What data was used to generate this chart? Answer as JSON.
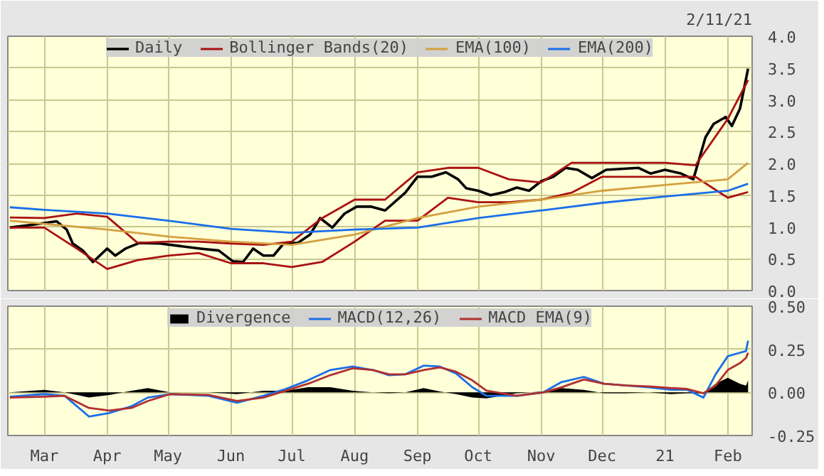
{
  "chart_data": [
    {
      "type": "line",
      "annotations": [
        "2/11/21"
      ],
      "xlim": [
        "2020-02-12",
        "2021-02-13"
      ],
      "ylim": [
        0,
        4
      ],
      "yticks": [
        {
          "value": 0,
          "label": "0.0"
        },
        {
          "value": 0.5,
          "label": "0.5"
        },
        {
          "value": 1,
          "label": "1.0"
        },
        {
          "value": 1.5,
          "label": "1.5"
        },
        {
          "value": 2,
          "label": "2.0"
        },
        {
          "value": 2.5,
          "label": "2.5"
        },
        {
          "value": 3,
          "label": "3.0"
        },
        {
          "value": 3.5,
          "label": "3.5"
        },
        {
          "value": 4,
          "label": "4.0"
        }
      ],
      "xticks": [
        {
          "value": "2020-03-01",
          "label": null
        },
        {
          "value": "2020-04-01",
          "label": null
        },
        {
          "value": "2020-05-01",
          "label": null
        },
        {
          "value": "2020-06-01",
          "label": null
        },
        {
          "value": "2020-07-01",
          "label": null
        },
        {
          "value": "2020-08-01",
          "label": null
        },
        {
          "value": "2020-09-01",
          "label": null
        },
        {
          "value": "2020-10-01",
          "label": null
        },
        {
          "value": "2020-11-01",
          "label": null
        },
        {
          "value": "2020-12-01",
          "label": null
        },
        {
          "value": "2021-01-01",
          "label": null
        },
        {
          "value": "2021-02-01",
          "label": null
        }
      ],
      "tick_labels": "y",
      "grid": true,
      "legend": "top",
      "series": [
        {
          "name": "Daily",
          "color": "#000000",
          "x": [
            "2020-02-13",
            "2020-02-25",
            "2020-03-07",
            "2020-03-12",
            "2020-03-15",
            "2020-03-20",
            "2020-03-25",
            "2020-04-01",
            "2020-04-05",
            "2020-04-10",
            "2020-04-17",
            "2020-04-27",
            "2020-05-07",
            "2020-05-17",
            "2020-05-26",
            "2020-06-02",
            "2020-06-07",
            "2020-06-12",
            "2020-06-17",
            "2020-06-22",
            "2020-06-27",
            "2020-07-04",
            "2020-07-10",
            "2020-07-15",
            "2020-07-21",
            "2020-07-27",
            "2020-08-02",
            "2020-08-09",
            "2020-08-16",
            "2020-08-26",
            "2020-09-01",
            "2020-09-08",
            "2020-09-15",
            "2020-09-21",
            "2020-09-25",
            "2020-10-01",
            "2020-10-07",
            "2020-10-14",
            "2020-10-20",
            "2020-10-26",
            "2020-11-01",
            "2020-11-07",
            "2020-11-13",
            "2020-11-19",
            "2020-11-26",
            "2020-12-03",
            "2020-12-09",
            "2020-12-19",
            "2020-12-25",
            "2021-01-01",
            "2021-01-09",
            "2021-01-15",
            "2021-01-17",
            "2021-01-21",
            "2021-01-25",
            "2021-01-31",
            "2021-02-03",
            "2021-02-07",
            "2021-02-11"
          ],
          "values": [
            0.99,
            1.04,
            1.09,
            0.96,
            0.74,
            0.63,
            0.45,
            0.66,
            0.55,
            0.66,
            0.75,
            0.74,
            0.7,
            0.66,
            0.63,
            0.46,
            0.45,
            0.66,
            0.55,
            0.55,
            0.74,
            0.75,
            0.88,
            1.14,
            0.99,
            1.21,
            1.32,
            1.32,
            1.26,
            1.54,
            1.79,
            1.79,
            1.86,
            1.75,
            1.61,
            1.57,
            1.5,
            1.55,
            1.62,
            1.57,
            1.72,
            1.79,
            1.93,
            1.9,
            1.77,
            1.9,
            1.91,
            1.93,
            1.84,
            1.9,
            1.84,
            1.75,
            1.97,
            2.41,
            2.62,
            2.73,
            2.59,
            2.86,
            3.49
          ]
        },
        {
          "name": "Bollinger Bands(20)",
          "color": "#aa1111",
          "x": [
            "2020-02-13",
            "2020-03-01",
            "2020-03-17",
            "2020-04-01",
            "2020-04-16",
            "2020-05-01",
            "2020-05-16",
            "2020-06-01",
            "2020-06-17",
            "2020-07-01",
            "2020-07-16",
            "2020-08-01",
            "2020-08-16",
            "2020-09-01",
            "2020-09-16",
            "2020-10-01",
            "2020-10-16",
            "2020-11-01",
            "2020-11-16",
            "2020-12-01",
            "2020-12-16",
            "2021-01-01",
            "2021-01-16",
            "2021-02-01",
            "2021-02-11"
          ],
          "values": [
            1.15,
            1.14,
            1.21,
            1.16,
            0.75,
            0.77,
            0.77,
            0.74,
            0.72,
            0.77,
            1.14,
            1.43,
            1.43,
            1.86,
            1.93,
            1.93,
            1.75,
            1.7,
            2.01,
            2.01,
            2.01,
            2.01,
            1.97,
            2.7,
            3.31
          ]
        },
        {
          "color": "#aa1111",
          "x": [
            "2020-02-13",
            "2020-03-01",
            "2020-03-17",
            "2020-04-01",
            "2020-04-16",
            "2020-05-01",
            "2020-05-16",
            "2020-06-01",
            "2020-06-17",
            "2020-07-01",
            "2020-07-16",
            "2020-08-01",
            "2020-08-16",
            "2020-09-01",
            "2020-09-16",
            "2020-10-01",
            "2020-10-16",
            "2020-11-01",
            "2020-11-16",
            "2020-12-01",
            "2020-12-16",
            "2021-01-01",
            "2021-01-16",
            "2021-02-01",
            "2021-02-11"
          ],
          "values": [
            0.99,
            0.99,
            0.66,
            0.34,
            0.48,
            0.55,
            0.59,
            0.43,
            0.43,
            0.37,
            0.45,
            0.77,
            1.1,
            1.1,
            1.46,
            1.39,
            1.39,
            1.43,
            1.54,
            1.79,
            1.79,
            1.79,
            1.79,
            1.46,
            1.55
          ]
        },
        {
          "name": "EMA(100)",
          "color": "#d4a040",
          "x": [
            "2020-02-13",
            "2020-03-01",
            "2020-04-01",
            "2020-05-01",
            "2020-06-01",
            "2020-07-01",
            "2020-08-01",
            "2020-09-01",
            "2020-10-01",
            "2020-11-01",
            "2020-12-01",
            "2021-01-01",
            "2021-02-01",
            "2021-02-11"
          ],
          "values": [
            1.1,
            1.05,
            0.96,
            0.85,
            0.77,
            0.72,
            0.88,
            1.14,
            1.32,
            1.43,
            1.57,
            1.66,
            1.75,
            2.01
          ]
        },
        {
          "name": "EMA(200)",
          "color": "#1a6ee8",
          "x": [
            "2020-02-13",
            "2020-03-01",
            "2020-04-01",
            "2020-05-01",
            "2020-06-01",
            "2020-07-01",
            "2020-08-01",
            "2020-09-01",
            "2020-10-01",
            "2020-11-01",
            "2020-12-01",
            "2021-01-01",
            "2021-02-01",
            "2021-02-11"
          ],
          "values": [
            1.31,
            1.27,
            1.21,
            1.1,
            0.97,
            0.91,
            0.96,
            0.99,
            1.14,
            1.26,
            1.38,
            1.48,
            1.57,
            1.68
          ]
        }
      ]
    },
    {
      "type": "line",
      "xlim": [
        "2020-02-12",
        "2021-02-13"
      ],
      "ylim": [
        -0.25,
        0.5
      ],
      "yticks": [
        {
          "value": -0.25,
          "label": "-0.25"
        },
        {
          "value": 0,
          "label": "0.00"
        },
        {
          "value": 0.25,
          "label": "0.25"
        },
        {
          "value": 0.5,
          "label": "0.50"
        }
      ],
      "xticks": [
        {
          "value": "2020-03-01",
          "label": "Mar"
        },
        {
          "value": "2020-04-01",
          "label": "Apr"
        },
        {
          "value": "2020-05-01",
          "label": "May"
        },
        {
          "value": "2020-06-01",
          "label": "Jun"
        },
        {
          "value": "2020-07-01",
          "label": "Jul"
        },
        {
          "value": "2020-08-01",
          "label": "Aug"
        },
        {
          "value": "2020-09-01",
          "label": "Sep"
        },
        {
          "value": "2020-10-01",
          "label": "Oct"
        },
        {
          "value": "2020-11-01",
          "label": "Nov"
        },
        {
          "value": "2020-12-01",
          "label": "Dec"
        },
        {
          "value": "2021-01-01",
          "label": "21"
        },
        {
          "value": "2021-02-01",
          "label": "Feb"
        }
      ],
      "grid": true,
      "legend": "top",
      "x": [
        "2020-02-13",
        "2020-03-01",
        "2020-03-11",
        "2020-03-23",
        "2020-04-02",
        "2020-04-13",
        "2020-04-21",
        "2020-05-02",
        "2020-05-21",
        "2020-06-04",
        "2020-06-17",
        "2020-06-28",
        "2020-07-09",
        "2020-07-20",
        "2020-07-31",
        "2020-08-10",
        "2020-08-18",
        "2020-08-26",
        "2020-09-04",
        "2020-09-12",
        "2020-09-20",
        "2020-09-28",
        "2020-10-05",
        "2020-10-20",
        "2020-11-02",
        "2020-11-11",
        "2020-11-22",
        "2020-12-02",
        "2020-12-13",
        "2020-12-24",
        "2021-01-04",
        "2021-01-12",
        "2021-01-20",
        "2021-01-26",
        "2021-02-01",
        "2021-02-07",
        "2021-02-10",
        "2021-02-11"
      ],
      "series": [
        {
          "name": "Divergence",
          "type": "area",
          "color": "#000000",
          "values": [
            0.0,
            0.015,
            0.0,
            -0.03,
            -0.015,
            0.01,
            0.025,
            0.0,
            0.0,
            -0.01,
            0.01,
            0.01,
            0.03,
            0.03,
            0.01,
            0.0,
            -0.005,
            0.0,
            0.025,
            0.005,
            -0.01,
            -0.03,
            -0.035,
            -0.005,
            0.005,
            0.025,
            0.015,
            -0.005,
            -0.005,
            0.0,
            -0.01,
            -0.005,
            -0.005,
            0.05,
            0.085,
            0.05,
            0.04,
            0.07
          ]
        },
        {
          "name": "MACD(12,26)",
          "color": "#1a6ee8",
          "values": [
            -0.025,
            -0.01,
            -0.02,
            -0.14,
            -0.12,
            -0.08,
            -0.03,
            -0.01,
            -0.02,
            -0.06,
            -0.02,
            0.02,
            0.07,
            0.13,
            0.15,
            0.13,
            0.1,
            0.105,
            0.155,
            0.15,
            0.11,
            0.03,
            -0.02,
            -0.02,
            0.0,
            0.06,
            0.09,
            0.05,
            0.04,
            0.03,
            0.015,
            0.015,
            -0.03,
            0.105,
            0.21,
            0.23,
            0.24,
            0.3
          ]
        },
        {
          "name": "MACD EMA(9)",
          "color": "#b03030",
          "values": [
            -0.03,
            -0.025,
            -0.02,
            -0.09,
            -0.105,
            -0.09,
            -0.05,
            -0.01,
            -0.015,
            -0.05,
            -0.03,
            0.01,
            0.05,
            0.1,
            0.14,
            0.13,
            0.105,
            0.105,
            0.13,
            0.145,
            0.12,
            0.07,
            0.01,
            -0.02,
            0.0,
            0.03,
            0.075,
            0.05,
            0.04,
            0.035,
            0.025,
            0.02,
            -0.005,
            0.04,
            0.13,
            0.17,
            0.2,
            0.23
          ]
        }
      ]
    }
  ]
}
